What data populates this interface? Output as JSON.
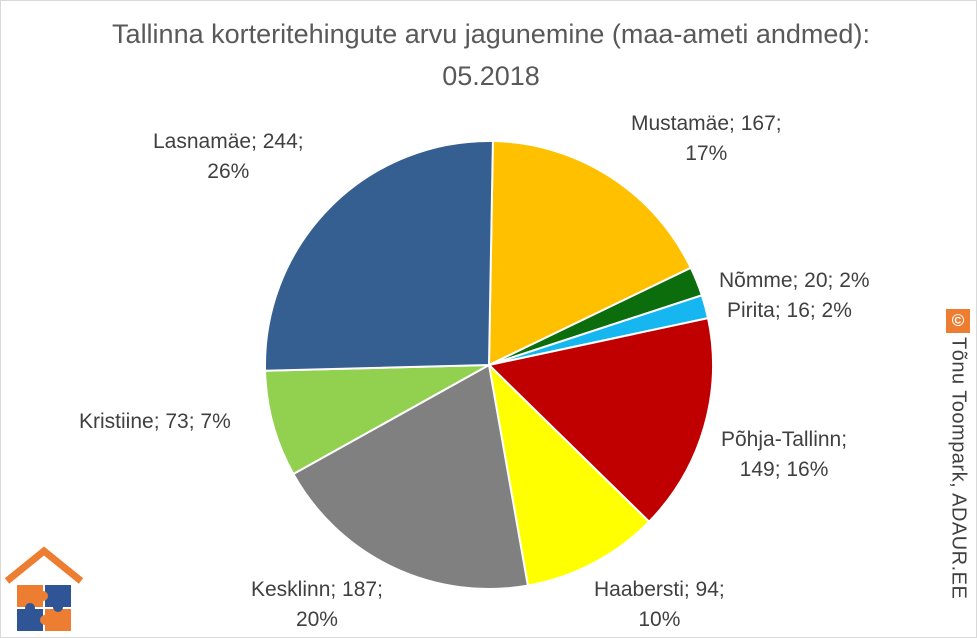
{
  "chart_data": {
    "type": "pie",
    "title": "Tallinna korteritehingute arvu jagunemine (maa-ameti andmed): 05.2018",
    "start_angle_deg": 1,
    "slices": [
      {
        "name": "Mustamäe",
        "value": 167,
        "percent": "17%",
        "color": "#ffc000",
        "line1": "Mustamäe; 167;",
        "line2": "17%"
      },
      {
        "name": "Nõmme",
        "value": 20,
        "percent": "2%",
        "color": "#0b6d0b",
        "line1": "Nõmme; 20; 2%",
        "line2": ""
      },
      {
        "name": "Pirita",
        "value": 16,
        "percent": "2%",
        "color": "#16b7f0",
        "line1": "Pirita; 16; 2%",
        "line2": ""
      },
      {
        "name": "Põhja-Tallinn",
        "value": 149,
        "percent": "16%",
        "color": "#c00000",
        "line1": "Põhja-Tallinn;",
        "line2": "149; 16%"
      },
      {
        "name": "Haabersti",
        "value": 94,
        "percent": "10%",
        "color": "#ffff00",
        "line1": "Haabersti; 94;",
        "line2": "10%"
      },
      {
        "name": "Kesklinn",
        "value": 187,
        "percent": "20%",
        "color": "#808080",
        "line1": "Kesklinn; 187;",
        "line2": "20%"
      },
      {
        "name": "Kristiine",
        "value": 73,
        "percent": "7%",
        "color": "#92d050",
        "line1": "Kristiine; 73; 7%",
        "line2": ""
      },
      {
        "name": "Lasnamäe",
        "value": 244,
        "percent": "26%",
        "color": "#365f91",
        "line1": "Lasnamäe; 244;",
        "line2": "26%"
      }
    ]
  },
  "watermark": {
    "symbol": "©",
    "text": "Tõnu Toompark, ADAUR.EE",
    "color": "#ed7d31"
  },
  "logo": {
    "icon": "house-puzzle-logo",
    "colors": [
      "#ed7d31",
      "#2f5597"
    ]
  }
}
